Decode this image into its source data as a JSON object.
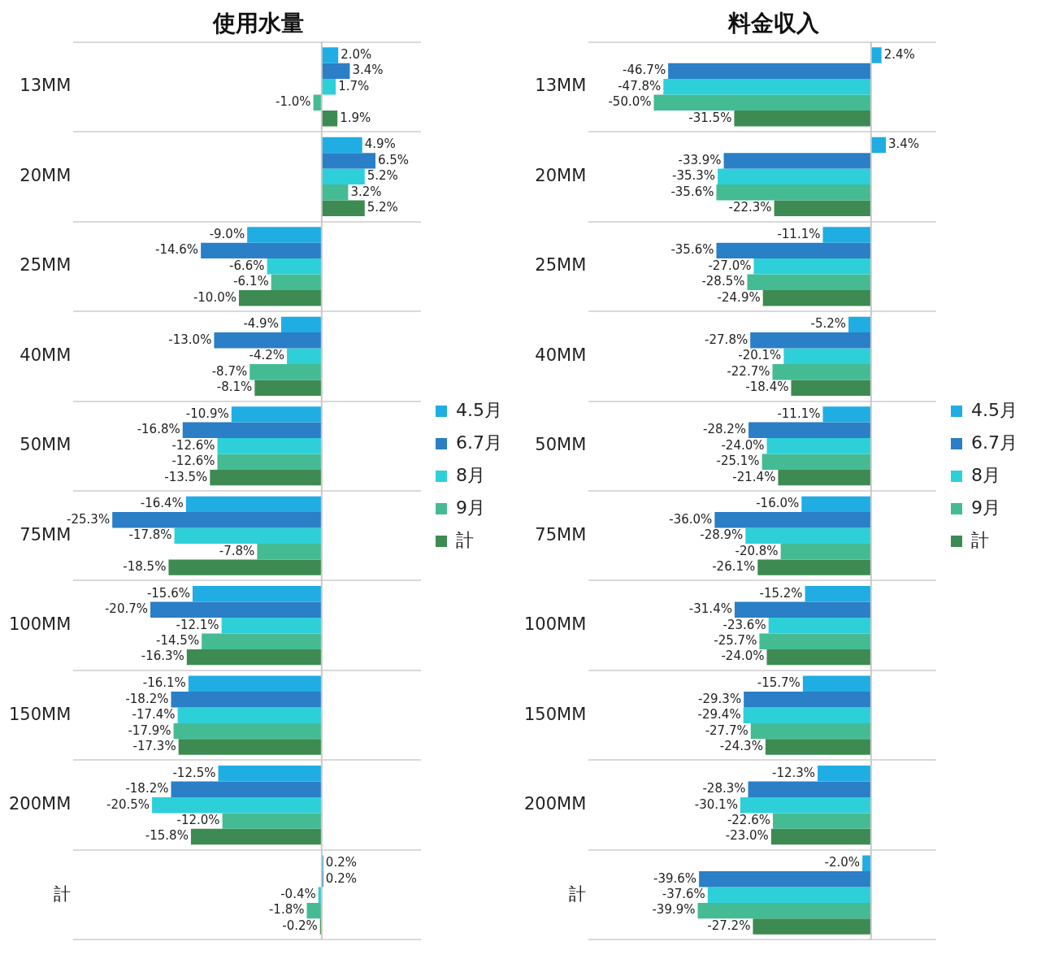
{
  "chart_data": [
    {
      "type": "bar",
      "title": "使用水量",
      "orientation": "horizontal",
      "categories": [
        "13MM",
        "20MM",
        "25MM",
        "40MM",
        "50MM",
        "75MM",
        "100MM",
        "150MM",
        "200MM",
        "計"
      ],
      "xlim": [
        -30,
        12
      ],
      "tick_labels": "y",
      "grid": "y",
      "legend": "right",
      "series": [
        {
          "name": "4.5月",
          "color": "#1fade3",
          "values": [
            2.0,
            4.9,
            -9.0,
            -4.9,
            -10.9,
            -16.4,
            -15.6,
            -16.1,
            -12.5,
            0.2
          ],
          "value_labels": [
            "2.0%",
            "4.9%",
            "-9.0%",
            "-4.9%",
            "-10.9%",
            "-16.4%",
            "-15.6%",
            "-16.1%",
            "-12.5%",
            "0.2%"
          ]
        },
        {
          "name": "6.7月",
          "color": "#2a7fc6",
          "values": [
            3.4,
            6.5,
            -14.6,
            -13.0,
            -16.8,
            -25.3,
            -20.7,
            -18.2,
            -18.2,
            0.2
          ],
          "value_labels": [
            "3.4%",
            "6.5%",
            "-14.6%",
            "-13.0%",
            "-16.8%",
            "-25.3%",
            "-20.7%",
            "-18.2%",
            "-18.2%",
            "0.2%"
          ]
        },
        {
          "name": "8月",
          "color": "#2dd0d8",
          "values": [
            1.7,
            5.2,
            -6.6,
            -4.2,
            -12.6,
            -17.8,
            -12.1,
            -17.4,
            -20.5,
            -0.4
          ],
          "value_labels": [
            "1.7%",
            "5.2%",
            "-6.6%",
            "-4.2%",
            "-12.6%",
            "-17.8%",
            "-12.1%",
            "-17.4%",
            "-20.5%",
            "-0.4%"
          ]
        },
        {
          "name": "9月",
          "color": "#45bb94",
          "values": [
            -1.0,
            3.2,
            -6.1,
            -8.7,
            -12.6,
            -7.8,
            -14.5,
            -17.9,
            -12.0,
            -1.8
          ],
          "value_labels": [
            "-1.0%",
            "3.2%",
            "-6.1%",
            "-8.7%",
            "-12.6%",
            "-7.8%",
            "-14.5%",
            "-17.9%",
            "-12.0%",
            "-1.8%"
          ]
        },
        {
          "name": "計",
          "color": "#3d8b52",
          "values": [
            1.9,
            5.2,
            -10.0,
            -8.1,
            -13.5,
            -18.5,
            -16.3,
            -17.3,
            -15.8,
            -0.2
          ],
          "value_labels": [
            "1.9%",
            "5.2%",
            "-10.0%",
            "-8.1%",
            "-13.5%",
            "-18.5%",
            "-16.3%",
            "-17.3%",
            "-15.8%",
            "-0.2%"
          ]
        }
      ]
    },
    {
      "type": "bar",
      "title": "料金収入",
      "orientation": "horizontal",
      "categories": [
        "13MM",
        "20MM",
        "25MM",
        "40MM",
        "50MM",
        "75MM",
        "100MM",
        "150MM",
        "200MM",
        "計"
      ],
      "xlim": [
        -65,
        15
      ],
      "tick_labels": "y",
      "grid": "y",
      "legend": "right",
      "series": [
        {
          "name": "4.5月",
          "color": "#1fade3",
          "values": [
            2.4,
            3.4,
            -11.1,
            -5.2,
            -11.1,
            -16.0,
            -15.2,
            -15.7,
            -12.3,
            -2.0
          ],
          "value_labels": [
            "2.4%",
            "3.4%",
            "-11.1%",
            "-5.2%",
            "-11.1%",
            "-16.0%",
            "-15.2%",
            "-15.7%",
            "-12.3%",
            "-2.0%"
          ]
        },
        {
          "name": "6.7月",
          "color": "#2a7fc6",
          "values": [
            -46.7,
            -33.9,
            -35.6,
            -27.8,
            -28.2,
            -36.0,
            -31.4,
            -29.3,
            -28.3,
            -39.6
          ],
          "value_labels": [
            "-46.7%",
            "-33.9%",
            "-35.6%",
            "-27.8%",
            "-28.2%",
            "-36.0%",
            "-31.4%",
            "-29.3%",
            "-28.3%",
            "-39.6%"
          ]
        },
        {
          "name": "8月",
          "color": "#2dd0d8",
          "values": [
            -47.8,
            -35.3,
            -27.0,
            -20.1,
            -24.0,
            -28.9,
            -23.6,
            -29.4,
            -30.1,
            -37.6
          ],
          "value_labels": [
            "-47.8%",
            "-35.3%",
            "-27.0%",
            "-20.1%",
            "-24.0%",
            "-28.9%",
            "-23.6%",
            "-29.4%",
            "-30.1%",
            "-37.6%"
          ]
        },
        {
          "name": "9月",
          "color": "#45bb94",
          "values": [
            -50.0,
            -35.6,
            -28.5,
            -22.7,
            -25.1,
            -20.8,
            -25.7,
            -27.7,
            -22.6,
            -39.9
          ],
          "value_labels": [
            "-50.0%",
            "-35.6%",
            "-28.5%",
            "-22.7%",
            "-25.1%",
            "-20.8%",
            "-25.7%",
            "-27.7%",
            "-22.6%",
            "-39.9%"
          ]
        },
        {
          "name": "計",
          "color": "#3d8b52",
          "values": [
            -31.5,
            -22.3,
            -24.9,
            -18.4,
            -21.4,
            -26.1,
            -24.0,
            -24.3,
            -23.0,
            -27.2
          ],
          "value_labels": [
            "-31.5%",
            "-22.3%",
            "-24.9%",
            "-18.4%",
            "-21.4%",
            "-26.1%",
            "-24.0%",
            "-24.3%",
            "-23.0%",
            "-27.2%"
          ]
        }
      ]
    }
  ]
}
